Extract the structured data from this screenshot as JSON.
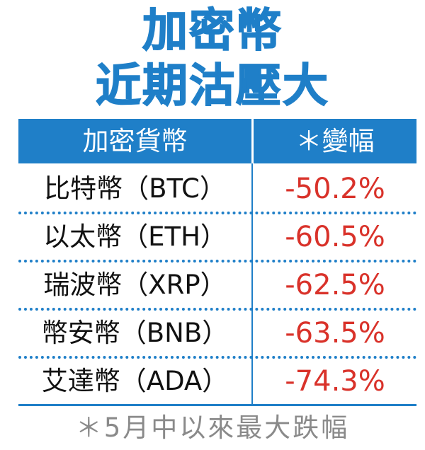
{
  "colors": {
    "accent": "#1f7fc8",
    "negative": "#d9322a",
    "footnote": "#8a8a8a",
    "text": "#111111"
  },
  "chart_data": {
    "type": "table",
    "title": "加密幣",
    "subtitle": "近期沽壓大",
    "columns": [
      "加密貨幣",
      "＊變幅"
    ],
    "rows": [
      {
        "name": "比特幣（BTC）",
        "change": "-50.2%",
        "value": -50.2
      },
      {
        "name": "以太幣（ETH）",
        "change": "-60.5%",
        "value": -60.5
      },
      {
        "name": "瑞波幣（XRP）",
        "change": "-62.5%",
        "value": -62.5
      },
      {
        "name": "幣安幣（BNB）",
        "change": "-63.5%",
        "value": -63.5
      },
      {
        "name": "艾達幣（ADA）",
        "change": "-74.3%",
        "value": -74.3
      }
    ],
    "footnote": "＊5月中以來最大跌幅"
  }
}
